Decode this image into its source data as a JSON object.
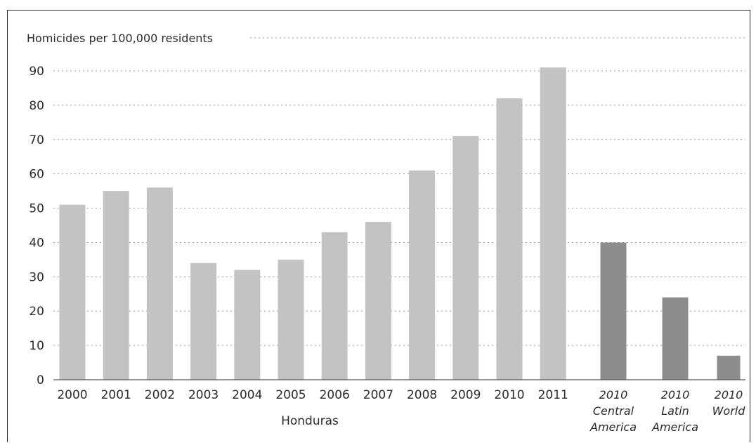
{
  "chart_data": {
    "type": "bar",
    "ylabel": "Homicides per 100,000 residents",
    "ylim": [
      0,
      90
    ],
    "yticks": [
      0,
      10,
      20,
      30,
      40,
      50,
      60,
      70,
      80,
      90
    ],
    "grid": true,
    "group_label": "Honduras",
    "categories": [
      "2000",
      "2001",
      "2002",
      "2003",
      "2004",
      "2005",
      "2006",
      "2007",
      "2008",
      "2009",
      "2010",
      "2011"
    ],
    "values": [
      51,
      55,
      56,
      34,
      32,
      35,
      43,
      46,
      61,
      71,
      82,
      91
    ],
    "comparisons": [
      {
        "year": "2010",
        "region": "Central",
        "region2": "America",
        "value": 40
      },
      {
        "year": "2010",
        "region": "Latin",
        "region2": "America",
        "value": 24
      },
      {
        "year": "2010",
        "region": "World",
        "region2": "",
        "value": 7
      }
    ],
    "colors": {
      "honduras_bar": "#c3c3c3",
      "comparison_bar": "#8d8d8d"
    }
  }
}
